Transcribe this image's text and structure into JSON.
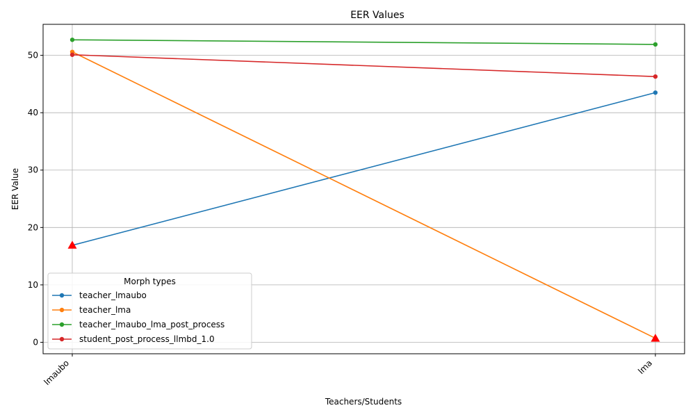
{
  "chart_data": {
    "type": "line",
    "title": "EER Values",
    "xlabel": "Teachers/Students",
    "ylabel": "EER Value",
    "categories": [
      "lmaubo",
      "lma"
    ],
    "ylim": [
      -2,
      55.4
    ],
    "yticks": [
      0,
      10,
      20,
      30,
      40,
      50
    ],
    "grid": true,
    "legend": {
      "title": "Morph types",
      "placement": "lower-left"
    },
    "series": [
      {
        "name": "teacher_lmaubo",
        "values": [
          16.9,
          43.5
        ],
        "color": "#1f77b4"
      },
      {
        "name": "teacher_lma",
        "values": [
          50.6,
          0.7
        ],
        "color": "#ff7f0e"
      },
      {
        "name": "teacher_lmaubo_lma_post_process",
        "values": [
          52.7,
          51.9
        ],
        "color": "#2ca02c"
      },
      {
        "name": "student_post_process_llmbd_1.0",
        "values": [
          50.1,
          46.3
        ],
        "color": "#d62728"
      }
    ],
    "min_markers": [
      {
        "series": "teacher_lmaubo",
        "category": "lmaubo",
        "value": 16.9
      },
      {
        "series": "teacher_lma",
        "category": "lma",
        "value": 0.7
      }
    ],
    "min_marker_color": "#ff0000"
  }
}
